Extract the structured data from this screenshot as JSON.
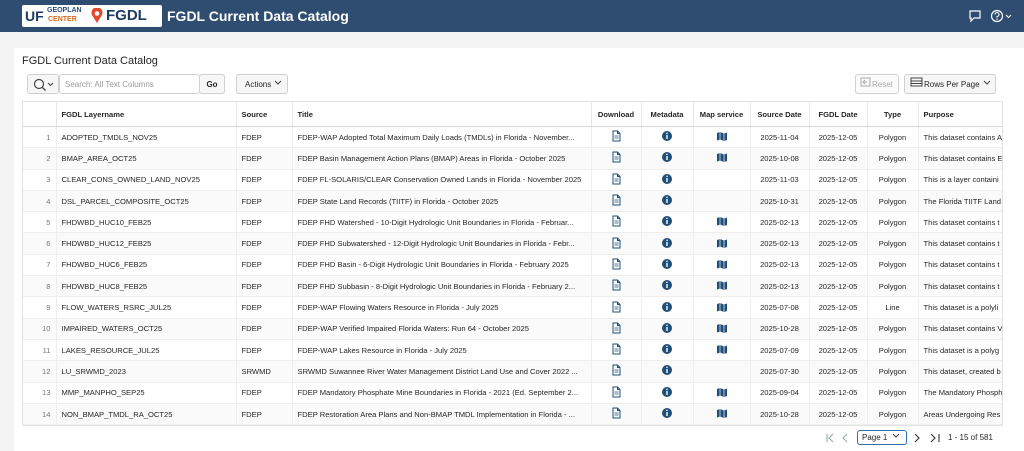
{
  "header": {
    "logo_uf": "UF",
    "logo_geoplan": "GEOPLAN",
    "logo_center": "CENTER",
    "logo_fgdl": "FGDL",
    "title": "FGDL Current Data Catalog"
  },
  "region_title": "FGDL Current Data Catalog",
  "toolbar": {
    "search_placeholder": "Search: All Text Columns",
    "go": "Go",
    "actions": "Actions",
    "reset": "Reset",
    "rows_per_page": "Rows Per Page"
  },
  "table": {
    "columns": [
      "FGDL Layername",
      "Source",
      "Title",
      "Download",
      "Metadata",
      "Map service",
      "Source Date",
      "FGDL Date",
      "Type",
      "Purpose"
    ],
    "rows": [
      {
        "num": 1,
        "layername": "ADOPTED_TMDLS_NOV25",
        "source": "FDEP",
        "title": "FDEP-WAP Adopted Total Maximum Daily Loads (TMDLs) in Florida - November...",
        "map_service": true,
        "source_date": "2025-11-04",
        "fgdl_date": "2025-12-05",
        "type": "Polygon",
        "purpose": "This dataset contains A"
      },
      {
        "num": 2,
        "layername": "BMAP_AREA_OCT25",
        "source": "FDEP",
        "title": "FDEP Basin Management Action Plans (BMAP) Areas in Florida - October 2025",
        "map_service": true,
        "source_date": "2025-10-08",
        "fgdl_date": "2025-12-05",
        "type": "Polygon",
        "purpose": "This dataset contains E"
      },
      {
        "num": 3,
        "layername": "CLEAR_CONS_OWNED_LAND_NOV25",
        "source": "FDEP",
        "title": "FDEP FL-SOLARIS/CLEAR Conservation Owned Lands in Florida - November 2025",
        "map_service": false,
        "source_date": "2025-11-03",
        "fgdl_date": "2025-12-05",
        "type": "Polygon",
        "purpose": "This is a layer containi"
      },
      {
        "num": 4,
        "layername": "DSL_PARCEL_COMPOSITE_OCT25",
        "source": "FDEP",
        "title": "FDEP State Land Records (TIITF) in Florida - October 2025",
        "map_service": false,
        "source_date": "2025-10-31",
        "fgdl_date": "2025-12-05",
        "type": "Polygon",
        "purpose": "The Florida TIITF Land"
      },
      {
        "num": 5,
        "layername": "FHDWBD_HUC10_FEB25",
        "source": "FDEP",
        "title": "FDEP FHD Watershed - 10-Digit Hydrologic Unit Boundaries in Florida - Februar...",
        "map_service": true,
        "source_date": "2025-02-13",
        "fgdl_date": "2025-12-05",
        "type": "Polygon",
        "purpose": "This dataset contains t"
      },
      {
        "num": 6,
        "layername": "FHDWBD_HUC12_FEB25",
        "source": "FDEP",
        "title": "FDEP FHD Subwatershed - 12-Digit Hydrologic Unit Boundaries in Florida - Febr...",
        "map_service": true,
        "source_date": "2025-02-13",
        "fgdl_date": "2025-12-05",
        "type": "Polygon",
        "purpose": "This dataset contains t"
      },
      {
        "num": 7,
        "layername": "FHDWBD_HUC6_FEB25",
        "source": "FDEP",
        "title": "FDEP FHD Basin - 6-Digit Hydrologic Unit Boundaries in Florida - February 2025",
        "map_service": true,
        "source_date": "2025-02-13",
        "fgdl_date": "2025-12-05",
        "type": "Polygon",
        "purpose": "This dataset contains t"
      },
      {
        "num": 8,
        "layername": "FHDWBD_HUC8_FEB25",
        "source": "FDEP",
        "title": "FDEP FHD Subbasin - 8-Digit Hydrologic Unit Boundaries in Florida - February 2...",
        "map_service": true,
        "source_date": "2025-02-13",
        "fgdl_date": "2025-12-05",
        "type": "Polygon",
        "purpose": "This dataset contains t"
      },
      {
        "num": 9,
        "layername": "FLOW_WATERS_RSRC_JUL25",
        "source": "FDEP",
        "title": "FDEP-WAP Flowing Waters Resource in Florida - July 2025",
        "map_service": true,
        "source_date": "2025-07-08",
        "fgdl_date": "2025-12-05",
        "type": "Line",
        "purpose": "This dataset is a polyli"
      },
      {
        "num": 10,
        "layername": "IMPAIRED_WATERS_OCT25",
        "source": "FDEP",
        "title": "FDEP-WAP Verified Impaired Florida Waters: Run 64 - October 2025",
        "map_service": true,
        "source_date": "2025-10-28",
        "fgdl_date": "2025-12-05",
        "type": "Polygon",
        "purpose": "This dataset contains V"
      },
      {
        "num": 11,
        "layername": "LAKES_RESOURCE_JUL25",
        "source": "FDEP",
        "title": "FDEP-WAP Lakes Resource in Florida - July 2025",
        "map_service": true,
        "source_date": "2025-07-09",
        "fgdl_date": "2025-12-05",
        "type": "Polygon",
        "purpose": "This dataset is a polyg"
      },
      {
        "num": 12,
        "layername": "LU_SRWMD_2023",
        "source": "SRWMD",
        "title": "SRWMD Suwannee River Water Management District Land Use and Cover 2022 ...",
        "map_service": false,
        "source_date": "2025-07-30",
        "fgdl_date": "2025-12-05",
        "type": "Polygon",
        "purpose": "This dataset, created b"
      },
      {
        "num": 13,
        "layername": "MMP_MANPHO_SEP25",
        "source": "FDEP",
        "title": "FDEP Mandatory Phosphate Mine Boundaries in Florida - 2021 (Ed. September 2...",
        "map_service": true,
        "source_date": "2025-09-04",
        "fgdl_date": "2025-12-05",
        "type": "Polygon",
        "purpose": "The Mandatory Phosph"
      },
      {
        "num": 14,
        "layername": "NON_BMAP_TMDL_RA_OCT25",
        "source": "FDEP",
        "title": "FDEP Restoration Area Plans and Non-BMAP TMDL Implementation in Florida - ...",
        "map_service": true,
        "source_date": "2025-10-28",
        "fgdl_date": "2025-12-05",
        "type": "Polygon",
        "purpose": "Areas Undergoing Res"
      }
    ]
  },
  "pagination": {
    "page": "Page 1",
    "range": "1 - 15 of 581"
  }
}
